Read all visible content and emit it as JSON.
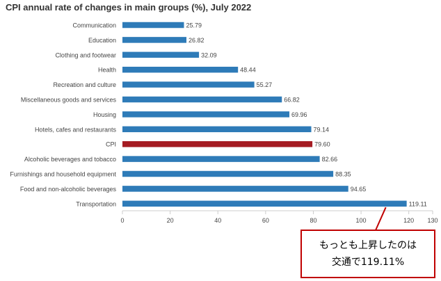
{
  "chart_data": {
    "type": "bar",
    "orientation": "horizontal",
    "title": "CPI annual rate of changes in main groups (%), July 2022",
    "categories": [
      "Communication",
      "Education",
      "Clothing and footwear",
      "Health",
      "Recreation and culture",
      "Miscellaneous goods and services",
      "Housing",
      "Hotels, cafes and restaurants",
      "CPI",
      "Alcoholic beverages and tobacco",
      "Furnishings and household equipment",
      "Food and non-alcoholic beverages",
      "Transportation"
    ],
    "values": [
      25.79,
      26.82,
      32.09,
      48.44,
      55.27,
      66.82,
      69.96,
      79.14,
      79.6,
      82.66,
      88.35,
      94.65,
      119.11
    ],
    "value_labels": [
      "25.79",
      "26.82",
      "32.09",
      "48.44",
      "55.27",
      "66.82",
      "69.96",
      "79.14",
      "79.60",
      "82.66",
      "88.35",
      "94.65",
      "119.11"
    ],
    "highlight_category": "CPI",
    "xlim": [
      0,
      130
    ],
    "xticks": [
      0,
      20,
      40,
      60,
      80,
      100,
      120,
      130
    ],
    "xtick_labels": [
      "0",
      "20",
      "40",
      "60",
      "80",
      "100",
      "120",
      "130"
    ],
    "xlabel": "",
    "ylabel": "",
    "grid": false,
    "colors": {
      "bar": "#2e7bb8",
      "highlight": "#a51c23",
      "axis": "#cccccc",
      "text": "#444444"
    }
  },
  "annotation": {
    "line1": "もっとも上昇したのは",
    "line2": "交通で119.11%",
    "target_category": "Transportation",
    "border_color": "#c00000",
    "pointer_color": "#c00000"
  }
}
